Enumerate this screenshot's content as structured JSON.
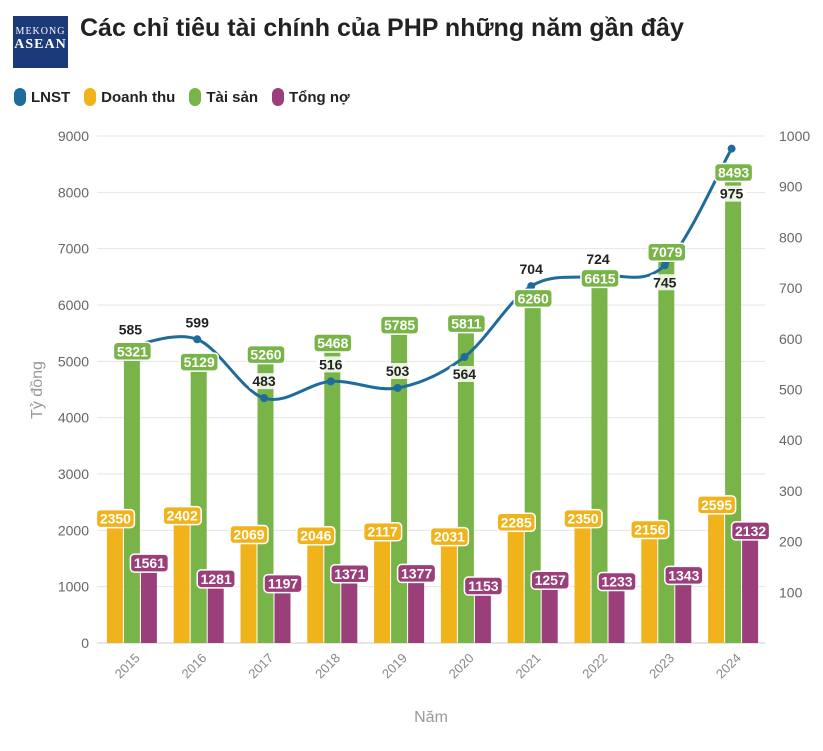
{
  "header": {
    "logo_text": [
      "Mekong",
      "ASEAN"
    ],
    "title": "Các chỉ tiêu tài chính của PHP những năm gần đây"
  },
  "chart_data": {
    "type": "bar+line",
    "title": "Các chỉ tiêu tài chính của PHP những năm gần đây",
    "xlabel": "Năm",
    "ylabel": "Tỷ đồng",
    "categories": [
      "2015",
      "2016",
      "2017",
      "2018",
      "2019",
      "2020",
      "2021",
      "2022",
      "2023",
      "2024"
    ],
    "ylim": [
      0,
      9000
    ],
    "y2lim": [
      0,
      1000
    ],
    "yticks": [
      0,
      1000,
      2000,
      3000,
      4000,
      5000,
      6000,
      7000,
      8000,
      9000
    ],
    "y2ticks": [
      100,
      200,
      300,
      400,
      500,
      600,
      700,
      800,
      900,
      1000
    ],
    "legend_position": "top-left",
    "grid": true,
    "series": [
      {
        "name": "LNST",
        "type": "line",
        "axis": "right",
        "color": "#1f6b99",
        "values": [
          585,
          599,
          483,
          516,
          503,
          564,
          704,
          724,
          745,
          975
        ]
      },
      {
        "name": "Doanh thu",
        "type": "bar",
        "axis": "left",
        "color": "#f0b31c",
        "values": [
          2350,
          2402,
          2069,
          2046,
          2117,
          2031,
          2285,
          2350,
          2156,
          2595
        ]
      },
      {
        "name": "Tài sản",
        "type": "bar",
        "axis": "left",
        "color": "#78b447",
        "values": [
          5321,
          5129,
          5260,
          5468,
          5785,
          5811,
          6260,
          6615,
          7079,
          8493
        ]
      },
      {
        "name": "Tổng nợ",
        "type": "bar",
        "axis": "left",
        "color": "#9b3f7a",
        "values": [
          1561,
          1281,
          1197,
          1371,
          1377,
          1153,
          1257,
          1233,
          1343,
          2132
        ]
      }
    ]
  }
}
